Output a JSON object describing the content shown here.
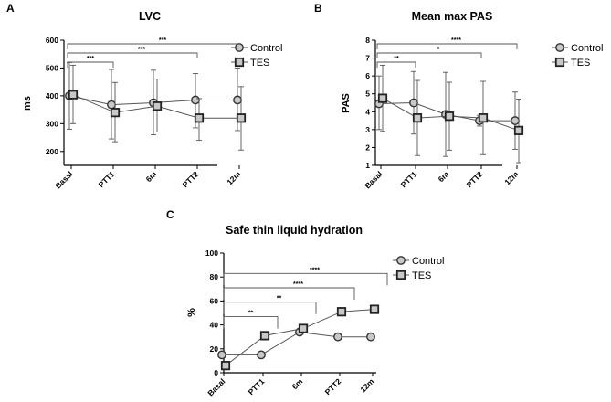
{
  "chart_data": [
    {
      "panel": "A",
      "type": "line",
      "title": "LVC",
      "xlabel": "",
      "ylabel": "ms",
      "categories": [
        "Basal",
        "PTT1",
        "6m",
        "PTT2",
        "12m"
      ],
      "ylim": [
        150,
        600
      ],
      "yticks": [
        200,
        300,
        400,
        500,
        600
      ],
      "series": [
        {
          "name": "Control",
          "marker": "circle",
          "values": [
            400,
            368,
            375,
            385,
            385
          ],
          "err_low": [
            280,
            245,
            260,
            285,
            275
          ],
          "err_high": [
            520,
            495,
            492,
            480,
            500
          ]
        },
        {
          "name": "TES",
          "marker": "square",
          "values": [
            404,
            340,
            363,
            320,
            320
          ],
          "err_low": [
            300,
            235,
            270,
            240,
            205
          ],
          "err_high": [
            510,
            448,
            460,
            390,
            433
          ]
        }
      ],
      "significance": [
        {
          "from": "Basal",
          "to": "PTT1",
          "label": "***"
        },
        {
          "from": "Basal",
          "to": "PTT2",
          "label": "***"
        },
        {
          "from": "Basal",
          "to": "12m",
          "label": "***"
        }
      ],
      "legend_position": "right"
    },
    {
      "panel": "B",
      "type": "line",
      "title": "Mean max PAS",
      "xlabel": "",
      "ylabel": "PAS",
      "categories": [
        "Basal",
        "PTT1",
        "6m",
        "PTT2",
        "12m"
      ],
      "ylim": [
        1,
        8
      ],
      "yticks": [
        1,
        2,
        3,
        4,
        5,
        6,
        7,
        8
      ],
      "series": [
        {
          "name": "Control",
          "marker": "circle",
          "values": [
            4.45,
            4.5,
            3.85,
            3.5,
            3.5
          ],
          "err_low": [
            3.0,
            2.75,
            1.5,
            3.2,
            1.9
          ],
          "err_high": [
            6.0,
            6.25,
            6.2,
            3.8,
            5.1
          ]
        },
        {
          "name": "TES",
          "marker": "square",
          "values": [
            4.75,
            3.65,
            3.75,
            3.65,
            2.95
          ],
          "err_low": [
            2.9,
            1.55,
            1.85,
            1.6,
            1.15
          ],
          "err_high": [
            6.6,
            5.75,
            5.65,
            5.7,
            4.7
          ]
        }
      ],
      "significance": [
        {
          "from": "Basal",
          "to": "PTT1",
          "label": "**"
        },
        {
          "from": "Basal",
          "to": "PTT2",
          "label": "*"
        },
        {
          "from": "Basal",
          "to": "12m",
          "label": "****"
        }
      ],
      "legend_position": "right"
    },
    {
      "panel": "C",
      "type": "line",
      "title": "Safe thin liquid hydration",
      "xlabel": "",
      "ylabel": "%",
      "categories": [
        "Basal",
        "PTT1",
        "6m",
        "PTT2",
        "12m"
      ],
      "ylim": [
        0,
        100
      ],
      "yticks": [
        0,
        20,
        40,
        60,
        80,
        100
      ],
      "series": [
        {
          "name": "Control",
          "marker": "circle",
          "values": [
            15,
            15,
            34,
            30,
            30
          ]
        },
        {
          "name": "TES",
          "marker": "square",
          "values": [
            6,
            31,
            37,
            51,
            53
          ]
        }
      ],
      "significance": [
        {
          "from": "Basal",
          "to": "PTT1",
          "label": "**"
        },
        {
          "from": "Basal",
          "to": "6m",
          "label": "**"
        },
        {
          "from": "Basal",
          "to": "PTT2",
          "label": "****"
        },
        {
          "from": "Basal",
          "to": "12m",
          "label": "****"
        }
      ],
      "legend_position": "right"
    }
  ]
}
